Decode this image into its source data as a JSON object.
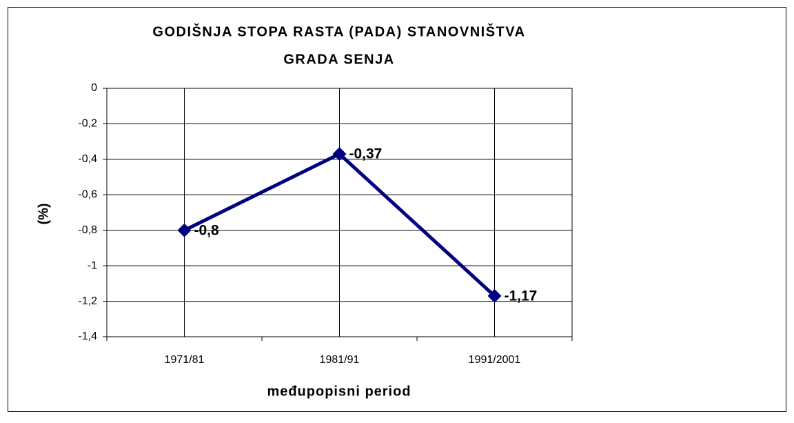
{
  "chart_data": {
    "type": "line",
    "title": [
      "GODIŠNJA STOPA RASTA (PADA) STANOVNIŠTVA",
      "GRADA SENJA"
    ],
    "xlabel": "međupopisni period",
    "ylabel": "(%)",
    "categories": [
      "1971/81",
      "1981/91",
      "1991/2001"
    ],
    "values": [
      -0.8,
      -0.37,
      -1.17
    ],
    "value_labels": [
      "-0,8",
      "-0,37",
      "-1,17"
    ],
    "color": "#000080",
    "ylim": [
      -1.4,
      0
    ],
    "yticks": [
      0,
      {
        "value": -0.2,
        "label": "-0,2"
      },
      {
        "value": -0.4,
        "label": "-0,4"
      },
      {
        "value": -0.6,
        "label": "-0,6"
      },
      {
        "value": -0.8,
        "label": "-0,8"
      },
      -1,
      {
        "value": -1.2,
        "label": "-1,2"
      },
      {
        "value": -1.4,
        "label": "-1,4"
      }
    ],
    "grid": true
  }
}
